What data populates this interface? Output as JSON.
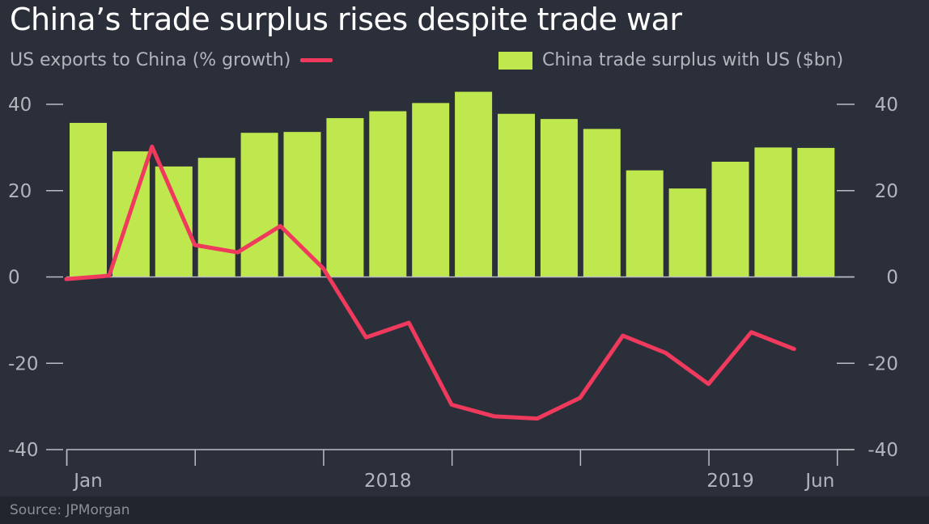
{
  "title": "China’s trade surplus rises despite trade war",
  "source": "Source: JPMorgan",
  "colors": {
    "background": "#2b2f3a",
    "bar": "#bfe84f",
    "line": "#ef3a5d",
    "axis": "#b9bcc4",
    "text": "#b2b5bd"
  },
  "chart_data": {
    "type": "bar",
    "title": "China’s trade surplus rises despite trade war",
    "ylim": [
      -40,
      40
    ],
    "y_ticks": [
      40,
      20,
      0,
      -20,
      -40
    ],
    "y_tick_labels": [
      "40",
      "20",
      "0",
      "-20",
      "-40"
    ],
    "x_labels": [
      {
        "label": "Jan",
        "index": 0
      },
      {
        "label": "2018",
        "index": 7
      },
      {
        "label": "2019",
        "index": 15
      },
      {
        "label": "Jun",
        "index": 17
      }
    ],
    "series": [
      {
        "name": "China trade surplus with US ($bn)",
        "type": "bar",
        "values": [
          35.7,
          29.1,
          25.6,
          27.6,
          33.4,
          33.6,
          36.8,
          38.4,
          40.3,
          42.9,
          37.8,
          36.6,
          34.3,
          24.7,
          20.5,
          26.7,
          30.0,
          29.9
        ]
      },
      {
        "name": "US exports to China (% growth)",
        "type": "line",
        "values": [
          -0.5,
          0.3,
          30.2,
          7.4,
          5.7,
          11.8,
          2.0,
          -14.0,
          -10.6,
          -29.6,
          -32.3,
          -32.8,
          -28.0,
          -13.6,
          -17.6,
          -24.8,
          -12.8,
          -16.7
        ]
      }
    ],
    "legend": [
      "US exports to China (% growth)",
      "China trade surplus with US ($bn)"
    ],
    "grid": false,
    "axis_labels": "both-sides"
  }
}
